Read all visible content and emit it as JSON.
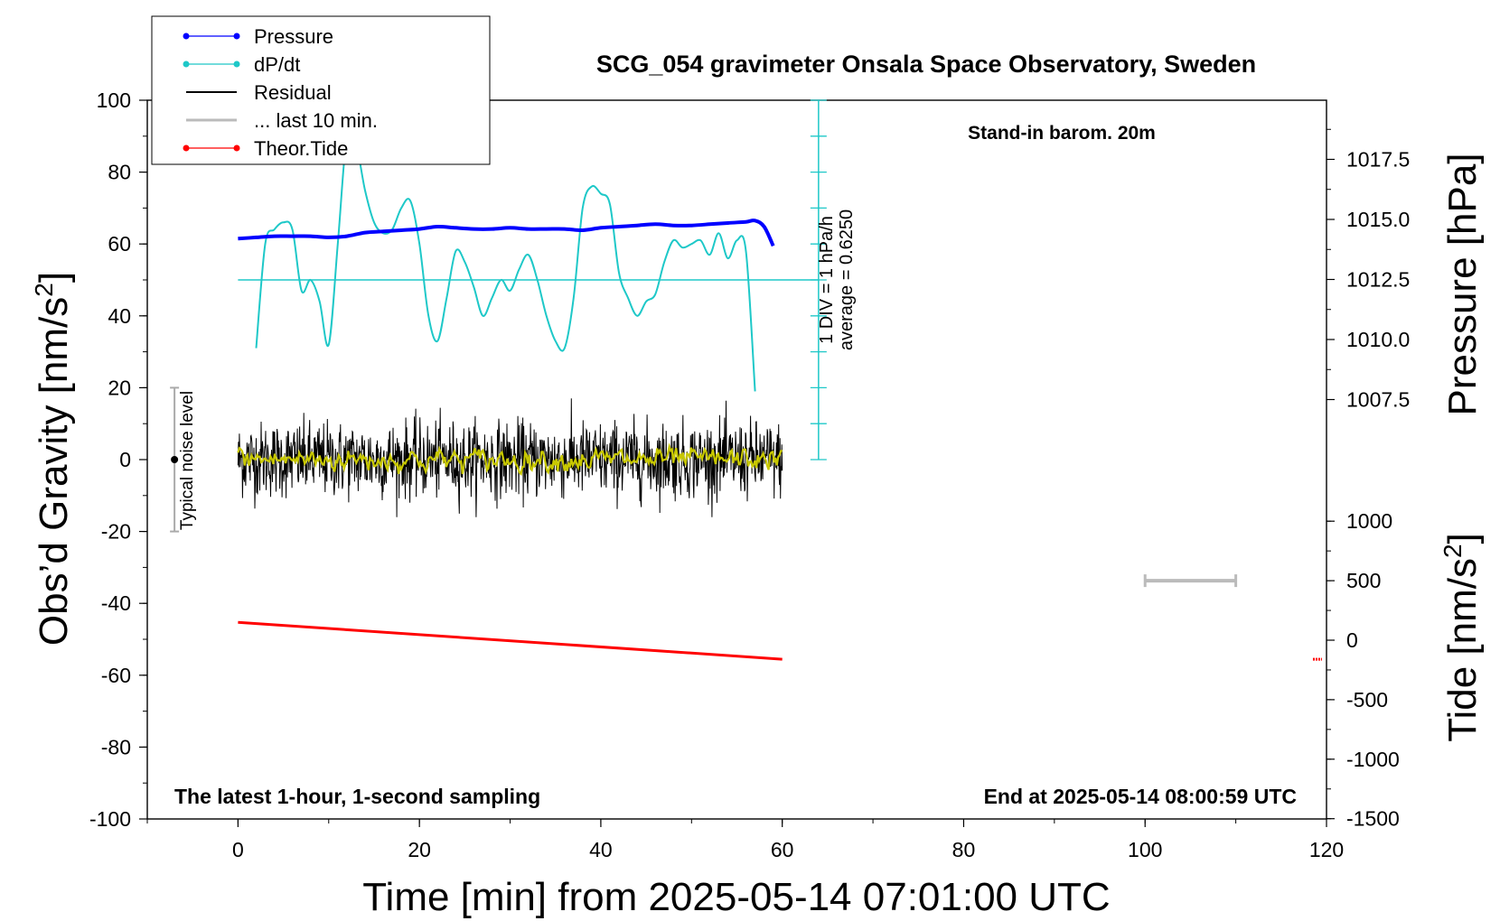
{
  "chart_data": {
    "type": "line",
    "title": "SCG_054 gravimeter Onsala Space Observatory, Sweden",
    "xlabel": "Time [min] from 2025-05-14 07:01:00 UTC",
    "ylabel_left": "Obs'd Gravity [nm/s2]",
    "ylabel_right_pressure": "Pressure [hPa]",
    "ylabel_right_tide": "Tide [nm/s2]",
    "xlim": [
      -10,
      120
    ],
    "ylim_left": [
      -100,
      100
    ],
    "x_ticks": [
      "0",
      "20",
      "40",
      "60",
      "80",
      "100",
      "120"
    ],
    "y_ticks_left": [
      "100",
      "80",
      "60",
      "40",
      "20",
      "0",
      "-20",
      "-40",
      "-60",
      "-80",
      "-100"
    ],
    "pressure_ticks": [
      "1017.5",
      "1015.0",
      "1012.5",
      "1010.0",
      "1007.5"
    ],
    "tide_ticks": [
      "1000",
      "500",
      "0",
      "-500",
      "-1000",
      "-1500"
    ],
    "notes": {
      "stand_in": "Stand-in barom. 20m",
      "latest": "The latest 1-hour, 1-second sampling",
      "end_at": "End at 2025-05-14 08:00:59 UTC",
      "noise": "Typical noise level",
      "div": "1 DIV = 1 hPa/h",
      "average": "average = 0.6250"
    },
    "legend": {
      "placement": "top-left",
      "items": [
        {
          "label": "Pressure",
          "color": "#0000ff",
          "marker": "dot"
        },
        {
          "label": "dP/dt",
          "color": "#1ec8c8",
          "marker": "dot"
        },
        {
          "label": "Residual",
          "color": "#000000",
          "marker": "none"
        },
        {
          "label": "... last 10 min.",
          "color": "#bbbbbb",
          "marker": "none"
        },
        {
          "label": "Theor.Tide",
          "color": "#ff0000",
          "marker": "dot"
        }
      ]
    },
    "series": [
      {
        "name": "Pressure",
        "color": "#0000ff",
        "axis": "pressure",
        "x": [
          0,
          2,
          4,
          6,
          8,
          10,
          12,
          14,
          16,
          18,
          20,
          22,
          24,
          26,
          28,
          30,
          32,
          34,
          36,
          38,
          40,
          42,
          44,
          46,
          48,
          50,
          52,
          54,
          56,
          57,
          58,
          59
        ],
        "y": [
          1014.2,
          1014.25,
          1014.3,
          1014.3,
          1014.3,
          1014.25,
          1014.3,
          1014.45,
          1014.5,
          1014.55,
          1014.6,
          1014.7,
          1014.65,
          1014.6,
          1014.6,
          1014.65,
          1014.6,
          1014.6,
          1014.6,
          1014.55,
          1014.65,
          1014.7,
          1014.75,
          1014.8,
          1014.75,
          1014.75,
          1014.8,
          1014.85,
          1014.9,
          1014.95,
          1014.7,
          1013.9
        ]
      },
      {
        "name": "dP/dt",
        "color": "#1ec8c8",
        "axis": "left",
        "x": [
          2,
          3,
          4,
          5,
          6,
          7,
          8,
          9,
          10,
          11,
          12,
          13,
          14,
          15,
          16,
          17,
          18,
          19,
          20,
          21,
          22,
          23,
          24,
          25,
          26,
          27,
          28,
          29,
          30,
          31,
          32,
          33,
          34,
          35,
          36,
          37,
          38,
          39,
          40,
          41,
          42,
          43,
          44,
          45,
          46,
          47,
          48,
          49,
          50,
          51,
          52,
          53,
          54,
          55,
          56,
          57
        ],
        "y": [
          31,
          60,
          64,
          66,
          64,
          47,
          50,
          44,
          32,
          60,
          90,
          88,
          75,
          66,
          63,
          64,
          70,
          72,
          60,
          40,
          33,
          45,
          58,
          55,
          48,
          40,
          45,
          50,
          47,
          53,
          57,
          50,
          40,
          33,
          31,
          45,
          70,
          76,
          74,
          71,
          52,
          45,
          40,
          44,
          46,
          55,
          61,
          59,
          60,
          61,
          57,
          63,
          56,
          61,
          58,
          19
        ]
      },
      {
        "name": "Residual",
        "color": "#000000",
        "axis": "left",
        "x_range": [
          0,
          60
        ],
        "mean": 0,
        "approx_range": [
          -16,
          17
        ]
      },
      {
        "name": "Residual (smoothed)",
        "color": "#c8c800",
        "axis": "left",
        "x_range": [
          0,
          60
        ],
        "approx_range": [
          -4,
          4
        ]
      },
      {
        "name": "Theor.Tide",
        "color": "#ff0000",
        "axis": "tide",
        "x": [
          0,
          60
        ],
        "y": [
          150,
          -160
        ]
      },
      {
        "name": "... last 10 min.",
        "color": "#bbbbbb",
        "axis": "tide",
        "x": [
          100,
          110
        ],
        "y": [
          500,
          500
        ]
      }
    ],
    "noise_bar": {
      "x": -7,
      "y_center": 0,
      "y_range": [
        -20,
        20
      ]
    },
    "average_line": {
      "y": 50
    },
    "tide_end_marker": {
      "x": 119,
      "y": -160
    },
    "colors": {
      "pressure": "#0000ff",
      "dpdt": "#1ec8c8",
      "residual": "#000000",
      "smooth": "#c8c800",
      "tide": "#ff0000",
      "last10": "#bbbbbb"
    }
  }
}
